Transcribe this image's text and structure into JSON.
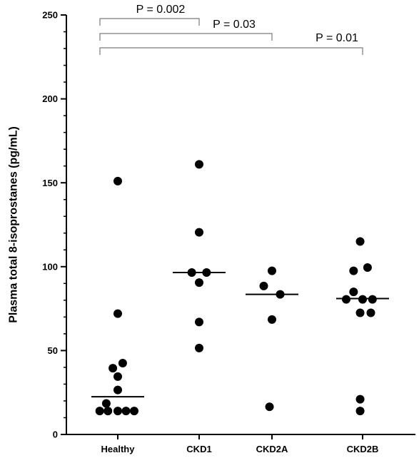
{
  "chart_data": {
    "type": "scatter",
    "ylabel": "Plasma total 8-isoprostanes (pg/mL)",
    "xlabel": "",
    "ylim": [
      0,
      250
    ],
    "yticks": [
      0,
      50,
      100,
      150,
      200,
      250
    ],
    "ytick_labels": [
      "0",
      "50",
      "100",
      "150",
      "200",
      "250"
    ],
    "minor_step": 10,
    "categories": [
      "Healthy",
      "CKD1",
      "CKD2A",
      "CKD2B"
    ],
    "groups": [
      {
        "name": "Healthy",
        "median": 22.5,
        "points": [
          {
            "x": -0.22,
            "y": 14
          },
          {
            "x": -0.12,
            "y": 14
          },
          {
            "x": 0.0,
            "y": 14
          },
          {
            "x": 0.1,
            "y": 14
          },
          {
            "x": 0.2,
            "y": 14
          },
          {
            "x": -0.14,
            "y": 18.5
          },
          {
            "x": 0.0,
            "y": 26.5
          },
          {
            "x": 0.0,
            "y": 34.5
          },
          {
            "x": -0.06,
            "y": 39.5
          },
          {
            "x": 0.06,
            "y": 42.5
          },
          {
            "x": 0.0,
            "y": 72
          },
          {
            "x": 0.0,
            "y": 151
          }
        ]
      },
      {
        "name": "CKD1",
        "median": 96.5,
        "points": [
          {
            "x": 0.0,
            "y": 161
          },
          {
            "x": 0.0,
            "y": 120.5
          },
          {
            "x": -0.09,
            "y": 96.5
          },
          {
            "x": 0.09,
            "y": 96.5
          },
          {
            "x": 0.0,
            "y": 90.5
          },
          {
            "x": 0.0,
            "y": 67
          },
          {
            "x": 0.0,
            "y": 51.5
          }
        ]
      },
      {
        "name": "CKD2A",
        "median": 83.5,
        "points": [
          {
            "x": 0.0,
            "y": 97.5
          },
          {
            "x": -0.1,
            "y": 88.5
          },
          {
            "x": 0.1,
            "y": 83.5
          },
          {
            "x": 0.0,
            "y": 68.5
          },
          {
            "x": -0.03,
            "y": 16.5
          }
        ]
      },
      {
        "name": "CKD2B",
        "median": 81,
        "points": [
          {
            "x": -0.03,
            "y": 115
          },
          {
            "x": -0.11,
            "y": 97.5
          },
          {
            "x": 0.06,
            "y": 99.5
          },
          {
            "x": -0.11,
            "y": 85
          },
          {
            "x": 0.0,
            "y": 80.5
          },
          {
            "x": 0.12,
            "y": 80.5
          },
          {
            "x": -0.2,
            "y": 80.5
          },
          {
            "x": -0.03,
            "y": 72.5
          },
          {
            "x": 0.1,
            "y": 72.5
          },
          {
            "x": -0.03,
            "y": 21
          },
          {
            "x": -0.03,
            "y": 14
          }
        ]
      }
    ],
    "annotations": [
      {
        "text": "P = 0.002",
        "from": "Healthy",
        "to": "CKD1"
      },
      {
        "text": "P = 0.03",
        "from": "Healthy",
        "to": "CKD2A"
      },
      {
        "text": "P = 0.01",
        "from": "Healthy",
        "to": "CKD2B"
      }
    ],
    "colors": {
      "points": "#000000",
      "axis": "#000000",
      "bracket": "#7a7a7a"
    },
    "grid": false,
    "legend": "none"
  }
}
